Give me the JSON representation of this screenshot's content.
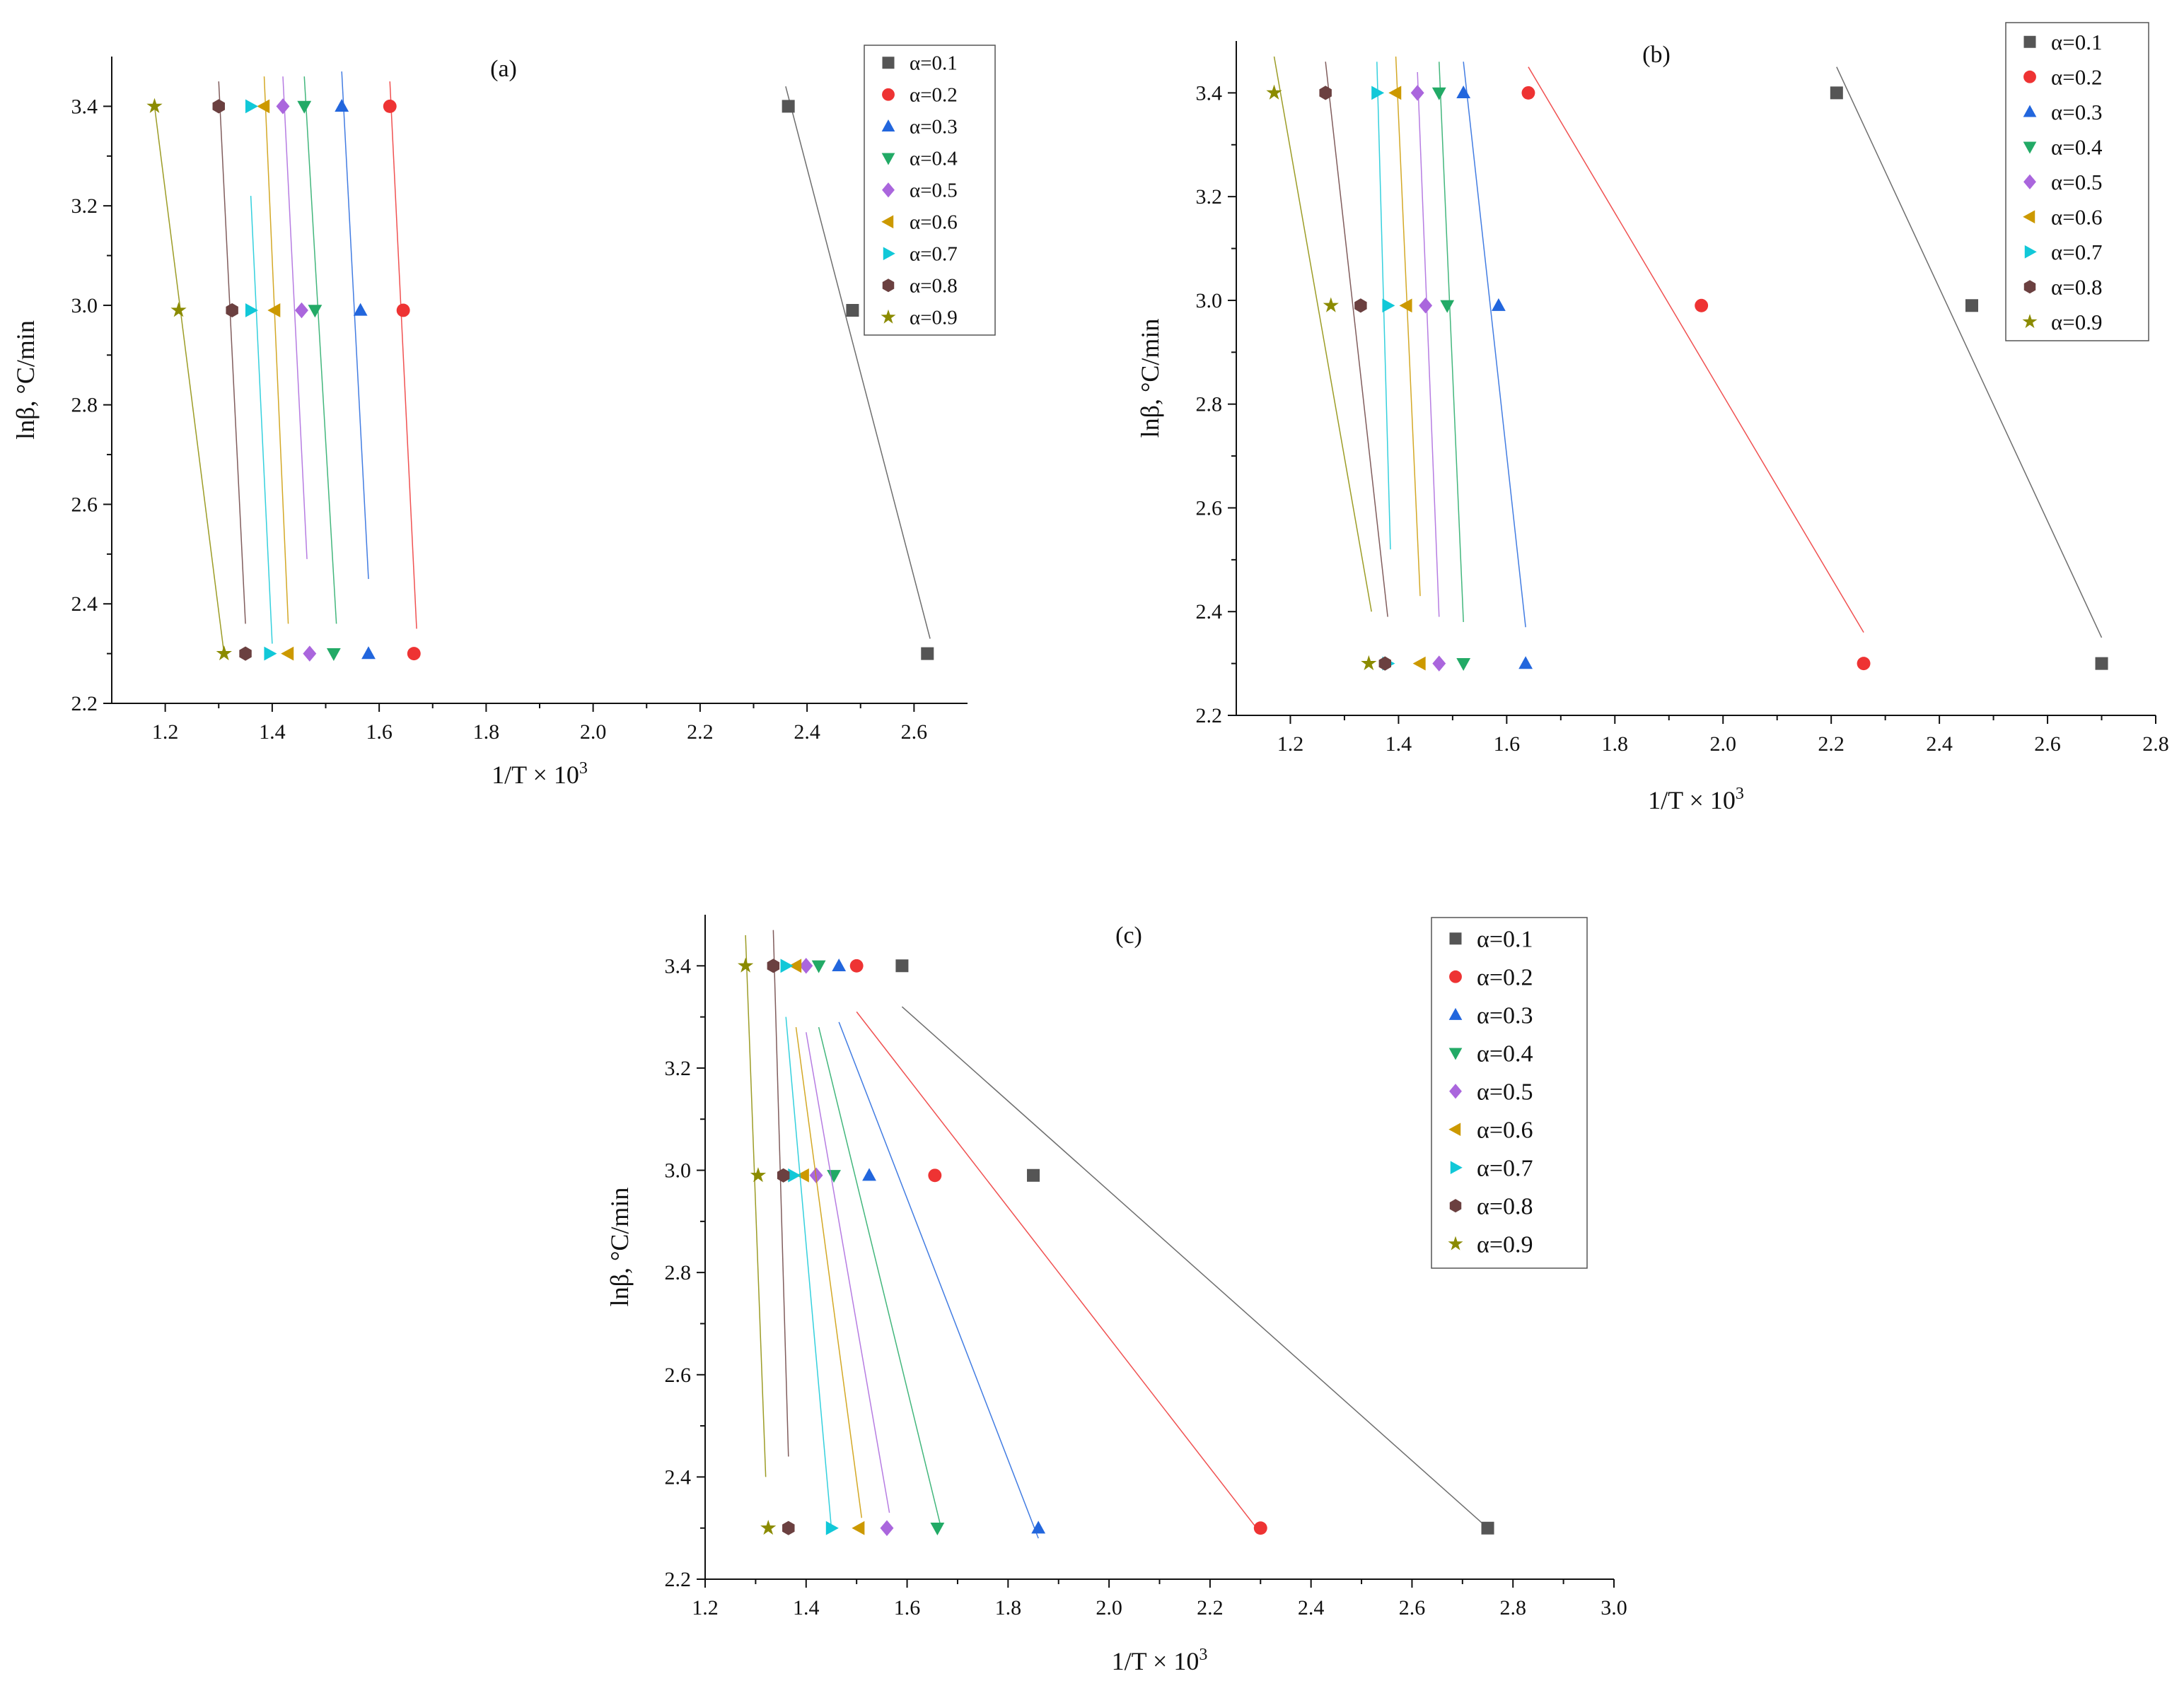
{
  "figure": {
    "series_colors": [
      "#555555",
      "#ee3333",
      "#2266dd",
      "#22aa66",
      "#aa66dd",
      "#cc9900",
      "#11c8d8",
      "#6b4040",
      "#8b8b00"
    ]
  },
  "chart_data": [
    {
      "type": "scatter",
      "title": "(a)",
      "xlabel": "1/T × 10",
      "xlabel_sup": "3",
      "ylabel": "lnβ, °C/min",
      "xlim": [
        1.1,
        2.7
      ],
      "ylim": [
        2.2,
        3.5
      ],
      "xticks": [
        1.2,
        1.4,
        1.6,
        1.8,
        2.0,
        2.2,
        2.4,
        2.6
      ],
      "xtick_labels": [
        "1.2",
        "1.4",
        "1.6",
        "1.8",
        "2.0",
        "2.2",
        "2.4",
        "2.6"
      ],
      "yticks": [
        2.2,
        2.4,
        2.6,
        2.8,
        3.0,
        3.2,
        3.4
      ],
      "ytick_labels": [
        "2.2",
        "2.4",
        "2.6",
        "2.8",
        "3.0",
        "3.2",
        "3.4"
      ],
      "legend_position": "top-right",
      "series": [
        {
          "name": "α=0.1",
          "marker": "square",
          "color": "#555555",
          "points": [
            [
              2.365,
              3.4
            ],
            [
              2.485,
              2.99
            ],
            [
              2.625,
              2.3
            ]
          ],
          "fit": [
            [
              2.36,
              3.44
            ],
            [
              2.63,
              2.33
            ]
          ]
        },
        {
          "name": "α=0.2",
          "marker": "circle",
          "color": "#ee3333",
          "points": [
            [
              1.62,
              3.4
            ],
            [
              1.645,
              2.99
            ],
            [
              1.665,
              2.3
            ]
          ],
          "fit": [
            [
              1.62,
              3.45
            ],
            [
              1.67,
              2.35
            ]
          ]
        },
        {
          "name": "α=0.3",
          "marker": "triangle-up",
          "color": "#2266dd",
          "points": [
            [
              1.53,
              3.4
            ],
            [
              1.565,
              2.99
            ],
            [
              1.58,
              2.3
            ]
          ],
          "fit": [
            [
              1.53,
              3.47
            ],
            [
              1.58,
              2.45
            ]
          ]
        },
        {
          "name": "α=0.4",
          "marker": "triangle-down",
          "color": "#22aa66",
          "points": [
            [
              1.46,
              3.4
            ],
            [
              1.48,
              2.99
            ],
            [
              1.515,
              2.3
            ]
          ],
          "fit": [
            [
              1.46,
              3.46
            ],
            [
              1.52,
              2.36
            ]
          ]
        },
        {
          "name": "α=0.5",
          "marker": "diamond",
          "color": "#aa66dd",
          "points": [
            [
              1.42,
              3.4
            ],
            [
              1.455,
              2.99
            ],
            [
              1.47,
              2.3
            ]
          ],
          "fit": [
            [
              1.42,
              3.46
            ],
            [
              1.465,
              2.49
            ]
          ]
        },
        {
          "name": "α=0.6",
          "marker": "triangle-left",
          "color": "#cc9900",
          "points": [
            [
              1.385,
              3.4
            ],
            [
              1.405,
              2.99
            ],
            [
              1.43,
              2.3
            ]
          ],
          "fit": [
            [
              1.385,
              3.46
            ],
            [
              1.43,
              2.36
            ]
          ]
        },
        {
          "name": "α=0.7",
          "marker": "triangle-right",
          "color": "#11c8d8",
          "points": [
            [
              1.36,
              3.4
            ],
            [
              1.36,
              2.99
            ],
            [
              1.395,
              2.3
            ]
          ],
          "fit": [
            [
              1.36,
              3.22
            ],
            [
              1.4,
              2.32
            ]
          ]
        },
        {
          "name": "α=0.8",
          "marker": "hexagon",
          "color": "#6b4040",
          "points": [
            [
              1.3,
              3.4
            ],
            [
              1.325,
              2.99
            ],
            [
              1.35,
              2.3
            ]
          ],
          "fit": [
            [
              1.3,
              3.45
            ],
            [
              1.35,
              2.36
            ]
          ]
        },
        {
          "name": "α=0.9",
          "marker": "star",
          "color": "#8b8b00",
          "points": [
            [
              1.18,
              3.4
            ],
            [
              1.225,
              2.99
            ],
            [
              1.31,
              2.3
            ]
          ],
          "fit": [
            [
              1.18,
              3.4
            ],
            [
              1.31,
              2.3
            ]
          ]
        }
      ]
    },
    {
      "type": "scatter",
      "title": "(b)",
      "xlabel": "1/T × 10",
      "xlabel_sup": "3",
      "ylabel": "lnβ, °C/min",
      "xlim": [
        1.1,
        2.8
      ],
      "ylim": [
        2.2,
        3.5
      ],
      "xticks": [
        1.2,
        1.4,
        1.6,
        1.8,
        2.0,
        2.2,
        2.4,
        2.6,
        2.8
      ],
      "xtick_labels": [
        "1.2",
        "1.4",
        "1.6",
        "1.8",
        "2.0",
        "2.2",
        "2.4",
        "2.6",
        "2.8"
      ],
      "yticks": [
        2.2,
        2.4,
        2.6,
        2.8,
        3.0,
        3.2,
        3.4
      ],
      "ytick_labels": [
        "2.2",
        "2.4",
        "2.6",
        "2.8",
        "3.0",
        "3.2",
        "3.4"
      ],
      "legend_position": "top-right",
      "series": [
        {
          "name": "α=0.1",
          "marker": "square",
          "color": "#555555",
          "points": [
            [
              2.21,
              3.4
            ],
            [
              2.46,
              2.99
            ],
            [
              2.7,
              2.3
            ]
          ],
          "fit": [
            [
              2.21,
              3.45
            ],
            [
              2.7,
              2.35
            ]
          ]
        },
        {
          "name": "α=0.2",
          "marker": "circle",
          "color": "#ee3333",
          "points": [
            [
              1.64,
              3.4
            ],
            [
              1.96,
              2.99
            ],
            [
              2.26,
              2.3
            ]
          ],
          "fit": [
            [
              1.64,
              3.45
            ],
            [
              2.26,
              2.36
            ]
          ]
        },
        {
          "name": "α=0.3",
          "marker": "triangle-up",
          "color": "#2266dd",
          "points": [
            [
              1.52,
              3.4
            ],
            [
              1.585,
              2.99
            ],
            [
              1.635,
              2.3
            ]
          ],
          "fit": [
            [
              1.52,
              3.46
            ],
            [
              1.635,
              2.37
            ]
          ]
        },
        {
          "name": "α=0.4",
          "marker": "triangle-down",
          "color": "#22aa66",
          "points": [
            [
              1.475,
              3.4
            ],
            [
              1.49,
              2.99
            ],
            [
              1.52,
              2.3
            ]
          ],
          "fit": [
            [
              1.475,
              3.46
            ],
            [
              1.52,
              2.38
            ]
          ]
        },
        {
          "name": "α=0.5",
          "marker": "diamond",
          "color": "#aa66dd",
          "points": [
            [
              1.435,
              3.4
            ],
            [
              1.45,
              2.99
            ],
            [
              1.475,
              2.3
            ]
          ],
          "fit": [
            [
              1.435,
              3.44
            ],
            [
              1.475,
              2.39
            ]
          ]
        },
        {
          "name": "α=0.6",
          "marker": "triangle-left",
          "color": "#cc9900",
          "points": [
            [
              1.395,
              3.4
            ],
            [
              1.415,
              2.99
            ],
            [
              1.44,
              2.3
            ]
          ],
          "fit": [
            [
              1.395,
              3.47
            ],
            [
              1.44,
              2.43
            ]
          ]
        },
        {
          "name": "α=0.7",
          "marker": "triangle-right",
          "color": "#11c8d8",
          "points": [
            [
              1.36,
              3.4
            ],
            [
              1.38,
              2.99
            ],
            [
              1.38,
              2.3
            ]
          ],
          "fit": [
            [
              1.36,
              3.46
            ],
            [
              1.385,
              2.52
            ]
          ]
        },
        {
          "name": "α=0.8",
          "marker": "hexagon",
          "color": "#6b4040",
          "points": [
            [
              1.265,
              3.4
            ],
            [
              1.33,
              2.99
            ],
            [
              1.375,
              2.3
            ]
          ],
          "fit": [
            [
              1.265,
              3.46
            ],
            [
              1.38,
              2.39
            ]
          ]
        },
        {
          "name": "α=0.9",
          "marker": "star",
          "color": "#8b8b00",
          "points": [
            [
              1.17,
              3.4
            ],
            [
              1.275,
              2.99
            ],
            [
              1.345,
              2.3
            ]
          ],
          "fit": [
            [
              1.17,
              3.47
            ],
            [
              1.35,
              2.4
            ]
          ]
        }
      ]
    },
    {
      "type": "scatter",
      "title": "(c)",
      "xlabel": "1/T × 10",
      "xlabel_sup": "3",
      "ylabel": "lnβ, °C/min",
      "xlim": [
        1.2,
        3.0
      ],
      "ylim": [
        2.2,
        3.5
      ],
      "xticks": [
        1.2,
        1.4,
        1.6,
        1.8,
        2.0,
        2.2,
        2.4,
        2.6,
        2.8,
        3.0
      ],
      "xtick_labels": [
        "1.2",
        "1.4",
        "1.6",
        "1.8",
        "2.0",
        "2.2",
        "2.4",
        "2.6",
        "2.8",
        "3.0"
      ],
      "yticks": [
        2.2,
        2.4,
        2.6,
        2.8,
        3.0,
        3.2,
        3.4
      ],
      "ytick_labels": [
        "2.2",
        "2.4",
        "2.6",
        "2.8",
        "3.0",
        "3.2",
        "3.4"
      ],
      "legend_position": "top-right",
      "series": [
        {
          "name": "α=0.1",
          "marker": "square",
          "color": "#555555",
          "points": [
            [
              1.59,
              3.4
            ],
            [
              1.85,
              2.99
            ],
            [
              2.75,
              2.3
            ]
          ],
          "fit": [
            [
              1.59,
              3.32
            ],
            [
              2.75,
              2.3
            ]
          ]
        },
        {
          "name": "α=0.2",
          "marker": "circle",
          "color": "#ee3333",
          "points": [
            [
              1.5,
              3.4
            ],
            [
              1.655,
              2.99
            ],
            [
              2.3,
              2.3
            ]
          ],
          "fit": [
            [
              1.5,
              3.31
            ],
            [
              2.3,
              2.29
            ]
          ]
        },
        {
          "name": "α=0.3",
          "marker": "triangle-up",
          "color": "#2266dd",
          "points": [
            [
              1.465,
              3.4
            ],
            [
              1.525,
              2.99
            ],
            [
              1.86,
              2.3
            ]
          ],
          "fit": [
            [
              1.465,
              3.29
            ],
            [
              1.86,
              2.28
            ]
          ]
        },
        {
          "name": "α=0.4",
          "marker": "triangle-down",
          "color": "#22aa66",
          "points": [
            [
              1.425,
              3.4
            ],
            [
              1.455,
              2.99
            ],
            [
              1.66,
              2.3
            ]
          ],
          "fit": [
            [
              1.425,
              3.28
            ],
            [
              1.665,
              2.31
            ]
          ]
        },
        {
          "name": "α=0.5",
          "marker": "diamond",
          "color": "#aa66dd",
          "points": [
            [
              1.4,
              3.4
            ],
            [
              1.42,
              2.99
            ],
            [
              1.56,
              2.3
            ]
          ],
          "fit": [
            [
              1.4,
              3.27
            ],
            [
              1.565,
              2.33
            ]
          ]
        },
        {
          "name": "α=0.6",
          "marker": "triangle-left",
          "color": "#cc9900",
          "points": [
            [
              1.38,
              3.4
            ],
            [
              1.395,
              2.99
            ],
            [
              1.505,
              2.3
            ]
          ],
          "fit": [
            [
              1.38,
              3.28
            ],
            [
              1.51,
              2.32
            ]
          ]
        },
        {
          "name": "α=0.7",
          "marker": "triangle-right",
          "color": "#11c8d8",
          "points": [
            [
              1.36,
              3.4
            ],
            [
              1.375,
              2.99
            ],
            [
              1.45,
              2.3
            ]
          ],
          "fit": [
            [
              1.36,
              3.3
            ],
            [
              1.45,
              2.3
            ]
          ]
        },
        {
          "name": "α=0.8",
          "marker": "hexagon",
          "color": "#6b4040",
          "points": [
            [
              1.335,
              3.4
            ],
            [
              1.355,
              2.99
            ],
            [
              1.365,
              2.3
            ]
          ],
          "fit": [
            [
              1.335,
              3.47
            ],
            [
              1.365,
              2.44
            ]
          ]
        },
        {
          "name": "α=0.9",
          "marker": "star",
          "color": "#8b8b00",
          "points": [
            [
              1.28,
              3.4
            ],
            [
              1.305,
              2.99
            ],
            [
              1.325,
              2.3
            ]
          ],
          "fit": [
            [
              1.28,
              3.46
            ],
            [
              1.32,
              2.4
            ]
          ]
        }
      ]
    }
  ]
}
